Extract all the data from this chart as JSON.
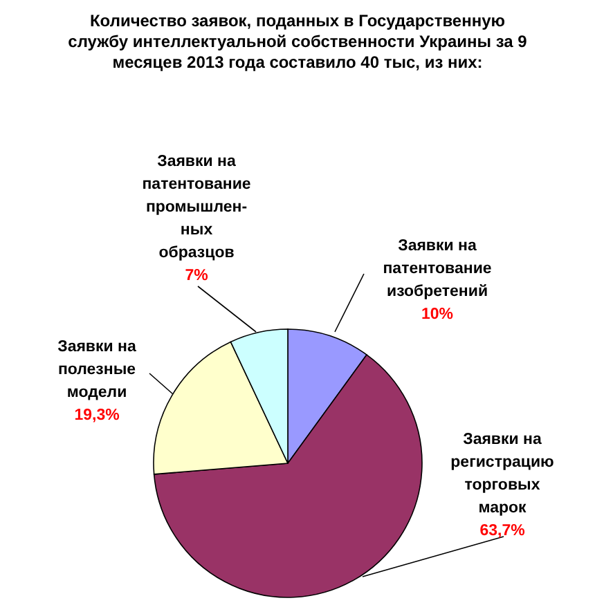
{
  "chart_data": {
    "type": "pie",
    "title": "Количество заявок, поданных в Государственную\nслужбу интеллектуальной собственности Украины за 9\nмесяцев 2013 года составило 40 тыс, из них:",
    "categories": [
      "Заявки на\nпатентование\nизобретений",
      "Заявки на\nрегистрацию\nторговых\nмарок",
      "Заявки на\nполезные\nмодели",
      "Заявки на\nпатентование\nпромышлен-\nных\nобразцов"
    ],
    "values": [
      10,
      63.7,
      19.3,
      7
    ],
    "value_labels": [
      "10%",
      "63,7%",
      "19,3%",
      "7%"
    ],
    "colors": [
      "#9999ff",
      "#993366",
      "#ffffcc",
      "#ccffff"
    ],
    "legend": false
  }
}
